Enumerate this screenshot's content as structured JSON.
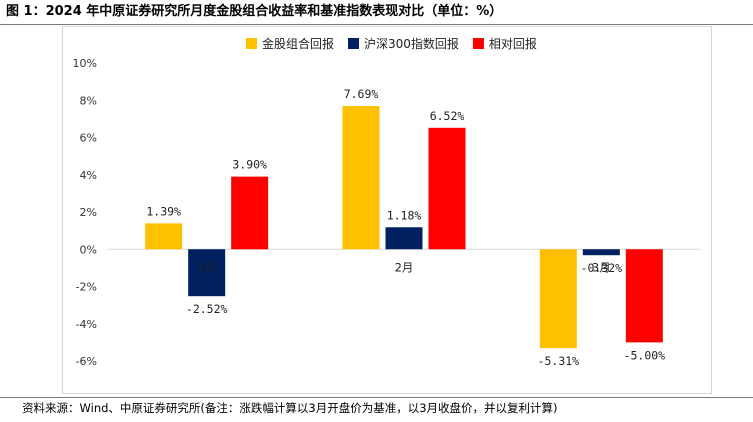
{
  "header": {
    "title": "图 1：2024 年中原证券研究所月度金股组合收益率和基准指数表现对比（单位：%）"
  },
  "footer": {
    "source": "资料来源：Wind、中原证券研究所(备注：涨跌幅计算以3月开盘价为基准，以3月收盘价，并以复利计算)"
  },
  "chart_data": {
    "type": "bar",
    "categories": [
      "1月",
      "2月",
      "3月"
    ],
    "series": [
      {
        "name": "金股组合回报",
        "color": "#FFC000",
        "values": [
          1.39,
          7.69,
          -5.31
        ],
        "labels": [
          "1.39%",
          "7.69%",
          "-5.31%"
        ]
      },
      {
        "name": "沪深300指数回报",
        "color": "#002060",
        "values": [
          -2.52,
          1.18,
          -0.32
        ],
        "labels": [
          "-2.52%",
          "1.18%",
          "-0.32%"
        ]
      },
      {
        "name": "相对回报",
        "color": "#FF0000",
        "values": [
          3.9,
          6.52,
          -5.0
        ],
        "labels": [
          "3.90%",
          "6.52%",
          "-5.00%"
        ]
      }
    ],
    "yticks": [
      10,
      8,
      6,
      4,
      2,
      0,
      -2,
      -4,
      -6
    ],
    "ytick_labels": [
      "10%",
      "8%",
      "6%",
      "4%",
      "2%",
      "0%",
      "-2%",
      "-4%",
      "-6%"
    ],
    "ylim": [
      -6,
      10
    ],
    "grid": false,
    "legend_position": "top-right",
    "title": "",
    "xlabel": "",
    "ylabel": ""
  }
}
